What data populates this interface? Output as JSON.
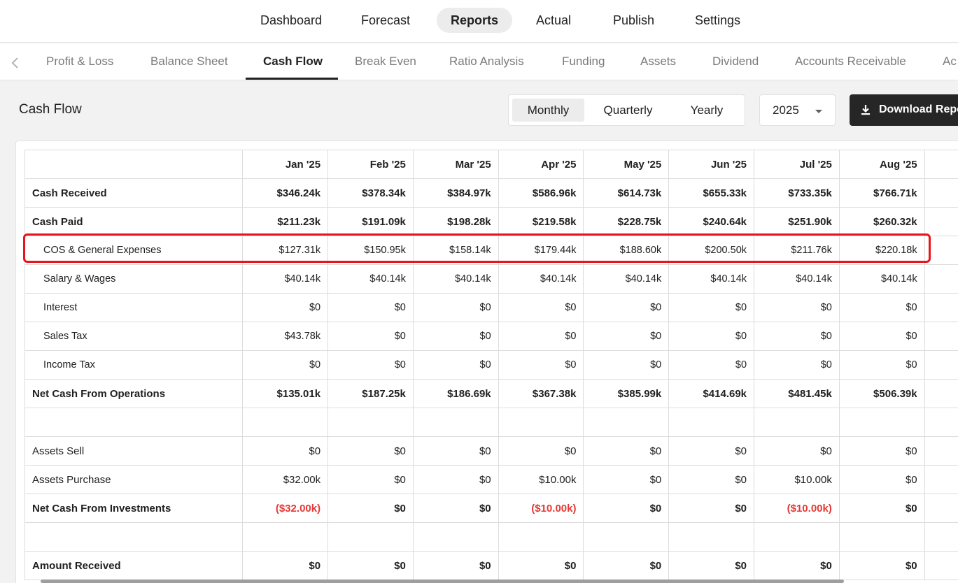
{
  "topnav": {
    "items": [
      {
        "label": "Dashboard"
      },
      {
        "label": "Forecast"
      },
      {
        "label": "Reports"
      },
      {
        "label": "Actual"
      },
      {
        "label": "Publish"
      },
      {
        "label": "Settings"
      }
    ],
    "active": "Reports"
  },
  "subnav": {
    "tabs": [
      {
        "label": "Profit & Loss"
      },
      {
        "label": "Balance Sheet"
      },
      {
        "label": "Cash Flow"
      },
      {
        "label": "Break Even"
      },
      {
        "label": "Ratio Analysis"
      },
      {
        "label": "Funding"
      },
      {
        "label": "Assets"
      },
      {
        "label": "Dividend"
      },
      {
        "label": "Accounts Receivable"
      },
      {
        "label": "Ac"
      }
    ],
    "active": "Cash Flow",
    "prev_icon": "chevron-left-icon"
  },
  "page": {
    "title": "Cash Flow"
  },
  "period": {
    "options": [
      {
        "label": "Monthly"
      },
      {
        "label": "Quarterly"
      },
      {
        "label": "Yearly"
      }
    ],
    "selected": "Monthly"
  },
  "year": {
    "value": "2025",
    "icon": "caret-down-icon"
  },
  "download": {
    "label": "Download Report",
    "icon": "download-icon"
  },
  "colors": {
    "accent": "#262626",
    "negative": "#e53935",
    "highlight": "#e8141b"
  },
  "table": {
    "columns": [
      "",
      "Jan '25",
      "Feb '25",
      "Mar '25",
      "Apr '25",
      "May '25",
      "Jun '25",
      "Jul '25",
      "Aug '25",
      ""
    ],
    "rows": [
      {
        "label": "Cash Received",
        "style": "bold",
        "values": [
          "$346.24k",
          "$378.34k",
          "$384.97k",
          "$586.96k",
          "$614.73k",
          "$655.33k",
          "$733.35k",
          "$766.71k"
        ]
      },
      {
        "label": "Cash Paid",
        "style": "bold",
        "values": [
          "$211.23k",
          "$191.09k",
          "$198.28k",
          "$219.58k",
          "$228.75k",
          "$240.64k",
          "$251.90k",
          "$260.32k"
        ]
      },
      {
        "label": "COS & General Expenses",
        "style": "sub",
        "highlighted": true,
        "values": [
          "$127.31k",
          "$150.95k",
          "$158.14k",
          "$179.44k",
          "$188.60k",
          "$200.50k",
          "$211.76k",
          "$220.18k"
        ]
      },
      {
        "label": "Salary & Wages",
        "style": "sub",
        "values": [
          "$40.14k",
          "$40.14k",
          "$40.14k",
          "$40.14k",
          "$40.14k",
          "$40.14k",
          "$40.14k",
          "$40.14k"
        ]
      },
      {
        "label": "Interest",
        "style": "sub",
        "values": [
          "$0",
          "$0",
          "$0",
          "$0",
          "$0",
          "$0",
          "$0",
          "$0"
        ]
      },
      {
        "label": "Sales Tax",
        "style": "sub",
        "values": [
          "$43.78k",
          "$0",
          "$0",
          "$0",
          "$0",
          "$0",
          "$0",
          "$0"
        ]
      },
      {
        "label": "Income Tax",
        "style": "sub",
        "values": [
          "$0",
          "$0",
          "$0",
          "$0",
          "$0",
          "$0",
          "$0",
          "$0"
        ]
      },
      {
        "label": "Net Cash From Operations",
        "style": "bold",
        "values": [
          "$135.01k",
          "$187.25k",
          "$186.69k",
          "$367.38k",
          "$385.99k",
          "$414.69k",
          "$481.45k",
          "$506.39k"
        ]
      },
      {
        "label": "",
        "style": "empty",
        "values": [
          "",
          "",
          "",
          "",
          "",
          "",
          "",
          ""
        ]
      },
      {
        "label": "Assets Sell",
        "style": "normal",
        "values": [
          "$0",
          "$0",
          "$0",
          "$0",
          "$0",
          "$0",
          "$0",
          "$0"
        ]
      },
      {
        "label": "Assets Purchase",
        "style": "normal",
        "values": [
          "$32.00k",
          "$0",
          "$0",
          "$10.00k",
          "$0",
          "$0",
          "$10.00k",
          "$0"
        ]
      },
      {
        "label": "Net Cash From Investments",
        "style": "bold",
        "values": [
          "($32.00k)",
          "$0",
          "$0",
          "($10.00k)",
          "$0",
          "$0",
          "($10.00k)",
          "$0"
        ]
      },
      {
        "label": "",
        "style": "empty",
        "values": [
          "",
          "",
          "",
          "",
          "",
          "",
          "",
          ""
        ]
      },
      {
        "label": "Amount Received",
        "style": "bold",
        "values": [
          "$0",
          "$0",
          "$0",
          "$0",
          "$0",
          "$0",
          "$0",
          "$0"
        ]
      }
    ]
  }
}
